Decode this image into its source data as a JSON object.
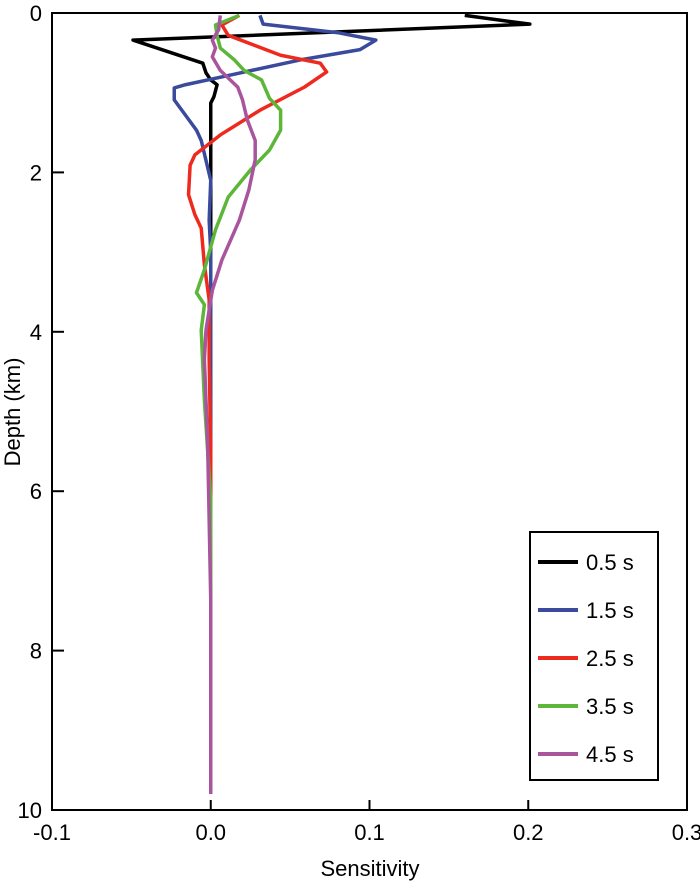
{
  "chart_data": {
    "type": "line",
    "title": "",
    "xlabel": "Sensitivity",
    "ylabel": "Depth (km)",
    "xlim": [
      -0.1,
      0.3
    ],
    "ylim": [
      0,
      10
    ],
    "y_inverted": true,
    "grid": false,
    "xticks": [
      -0.1,
      0,
      0.1,
      0.2,
      0.3
    ],
    "xtick_labels": [
      "-0.1",
      "0.0",
      "0.1",
      "0.2",
      "0.3"
    ],
    "yticks": [
      0,
      2,
      4,
      6,
      8,
      10
    ],
    "ytick_labels": [
      "0",
      "2",
      "4",
      "6",
      "8",
      "10"
    ],
    "legend_position": "bottom-right",
    "series": [
      {
        "name": "0.5 s",
        "color": "#000000",
        "points": [
          [
            0.16,
            0.03
          ],
          [
            0.201,
            0.14
          ],
          [
            -0.049,
            0.34
          ],
          [
            -0.005,
            0.63
          ],
          [
            -0.003,
            0.75
          ],
          [
            0.0,
            0.84
          ],
          [
            0.004,
            0.9
          ],
          [
            0.002,
            1.05
          ],
          [
            0.0,
            1.13
          ],
          [
            0.0,
            9.8
          ]
        ]
      },
      {
        "name": "1.5 s",
        "color": "#3a4a9c",
        "points": [
          [
            0.031,
            0.03
          ],
          [
            0.033,
            0.14
          ],
          [
            0.081,
            0.25
          ],
          [
            0.104,
            0.34
          ],
          [
            0.094,
            0.46
          ],
          [
            0.056,
            0.59
          ],
          [
            0.012,
            0.78
          ],
          [
            -0.016,
            0.9
          ],
          [
            -0.023,
            0.94
          ],
          [
            -0.023,
            1.09
          ],
          [
            -0.016,
            1.28
          ],
          [
            -0.009,
            1.47
          ],
          [
            -0.006,
            1.6
          ],
          [
            0.0,
            2.1
          ],
          [
            -0.001,
            2.6
          ],
          [
            0.0,
            3.0
          ],
          [
            0.0,
            9.8
          ]
        ]
      },
      {
        "name": "2.5 s",
        "color": "#ee2a1e",
        "points": [
          [
            0.018,
            0.03
          ],
          [
            0.007,
            0.15
          ],
          [
            0.011,
            0.28
          ],
          [
            0.044,
            0.53
          ],
          [
            0.069,
            0.63
          ],
          [
            0.073,
            0.74
          ],
          [
            0.059,
            0.93
          ],
          [
            0.031,
            1.22
          ],
          [
            0.006,
            1.53
          ],
          [
            -0.01,
            1.78
          ],
          [
            -0.013,
            1.91
          ],
          [
            -0.014,
            2.28
          ],
          [
            -0.01,
            2.53
          ],
          [
            -0.006,
            2.7
          ],
          [
            -0.004,
            3.16
          ],
          [
            -0.001,
            3.6
          ],
          [
            -0.001,
            4.35
          ],
          [
            0.0,
            5.5
          ],
          [
            0.0,
            9.8
          ]
        ]
      },
      {
        "name": "3.5 s",
        "color": "#5db53a",
        "points": [
          [
            0.018,
            0.03
          ],
          [
            0.003,
            0.15
          ],
          [
            0.004,
            0.28
          ],
          [
            0.006,
            0.44
          ],
          [
            0.015,
            0.59
          ],
          [
            0.021,
            0.72
          ],
          [
            0.032,
            0.84
          ],
          [
            0.037,
            1.07
          ],
          [
            0.044,
            1.22
          ],
          [
            0.044,
            1.47
          ],
          [
            0.037,
            1.72
          ],
          [
            0.025,
            1.97
          ],
          [
            0.011,
            2.31
          ],
          [
            0.003,
            2.72
          ],
          [
            -0.004,
            3.22
          ],
          [
            -0.009,
            3.51
          ],
          [
            -0.004,
            3.66
          ],
          [
            -0.006,
            3.98
          ],
          [
            -0.004,
            4.86
          ],
          [
            0.0,
            6.1
          ],
          [
            0.0,
            9.8
          ]
        ]
      },
      {
        "name": "4.5 s",
        "color": "#a8559e",
        "points": [
          [
            0.006,
            0.03
          ],
          [
            0.005,
            0.21
          ],
          [
            0.001,
            0.34
          ],
          [
            0.003,
            0.44
          ],
          [
            0.001,
            0.55
          ],
          [
            0.006,
            0.72
          ],
          [
            0.017,
            0.93
          ],
          [
            0.02,
            1.09
          ],
          [
            0.023,
            1.34
          ],
          [
            0.028,
            1.6
          ],
          [
            0.028,
            1.84
          ],
          [
            0.024,
            2.22
          ],
          [
            0.018,
            2.6
          ],
          [
            0.007,
            3.1
          ],
          [
            0.001,
            3.48
          ],
          [
            -0.003,
            3.98
          ],
          [
            -0.004,
            4.35
          ],
          [
            -0.002,
            5.36
          ],
          [
            0.0,
            7.37
          ],
          [
            0.0,
            9.8
          ]
        ]
      }
    ]
  }
}
